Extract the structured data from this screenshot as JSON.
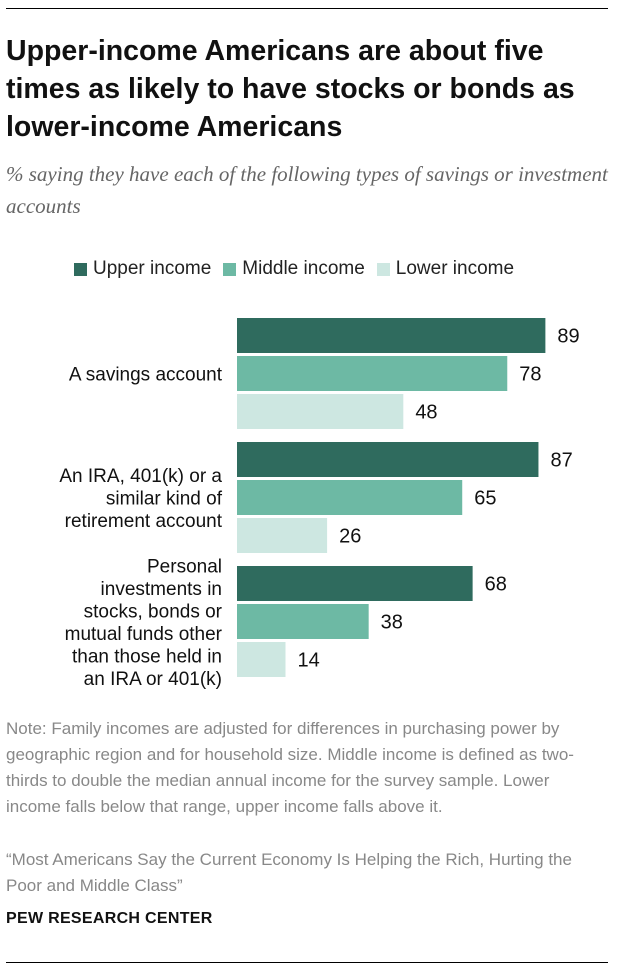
{
  "title": "Upper-income Americans are about five times as likely to have stocks or bonds as lower-income Americans",
  "subtitle": "% saying they have each of the following types of savings or investment accounts",
  "legend": [
    {
      "label": "Upper income",
      "color": "#2f6b5e"
    },
    {
      "label": "Middle income",
      "color": "#6db9a4"
    },
    {
      "label": "Lower income",
      "color": "#cde7e1"
    }
  ],
  "chart_data": {
    "type": "bar",
    "orientation": "horizontal",
    "title": "Upper-income Americans are about five times as likely to have stocks or bonds as lower-income Americans",
    "xlabel": "",
    "ylabel": "",
    "xlim": [
      0,
      100
    ],
    "categories": [
      [
        "A savings account"
      ],
      [
        "An IRA, 401(k) or a",
        "similar kind of",
        "retirement account"
      ],
      [
        "Personal",
        "investments in",
        "stocks, bonds or",
        "mutual funds other",
        "than those held in",
        "an IRA or 401(k)"
      ]
    ],
    "series": [
      {
        "name": "Upper income",
        "values": [
          89,
          87,
          68
        ]
      },
      {
        "name": "Middle income",
        "values": [
          78,
          65,
          38
        ]
      },
      {
        "name": "Lower income",
        "values": [
          48,
          26,
          14
        ]
      }
    ]
  },
  "note": "Note:  Family incomes are adjusted for differences in purchasing power by geographic region and for household size. Middle income is defined as two-thirds to double the median annual income for the survey sample. Lower income falls below that range, upper income falls above it.",
  "source": "“Most Americans Say the Current Economy Is Helping the Rich, Hurting the Poor and Middle Class”",
  "credit": "PEW RESEARCH CENTER"
}
